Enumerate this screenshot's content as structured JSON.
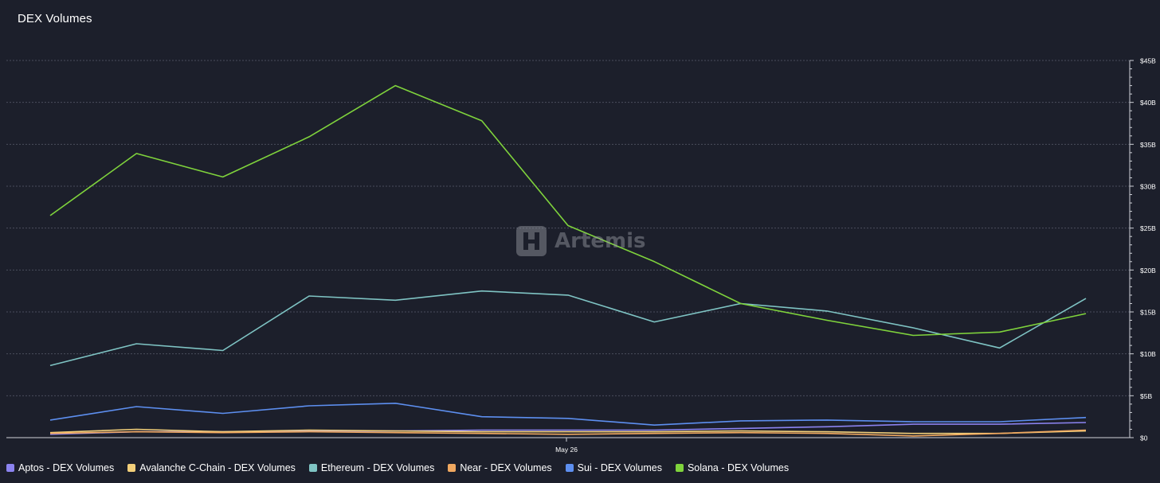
{
  "page": {
    "title": "DEX Volumes",
    "watermark": "Artemis"
  },
  "chart_data": {
    "type": "line",
    "title": "DEX Volumes",
    "xlabel": "",
    "ylabel": "",
    "x_tick_labels": [
      "May 26"
    ],
    "y_ticks": [
      "$0",
      "$5B",
      "$10B",
      "$15B",
      "$20B",
      "$25B",
      "$30B",
      "$35B",
      "$40B",
      "$45B"
    ],
    "ylim": [
      0,
      45
    ],
    "y_unit": "billions USD",
    "grid": true,
    "legend_position": "bottom",
    "series": [
      {
        "name": "Aptos - DEX Volumes",
        "color": "#8b83f0",
        "values": [
          0.4,
          0.7,
          0.7,
          0.8,
          0.8,
          0.9,
          0.9,
          0.9,
          1.1,
          1.3,
          1.6,
          1.6,
          1.8
        ]
      },
      {
        "name": "Avalanche C-Chain - DEX Volumes",
        "color": "#f2cf7a",
        "values": [
          0.6,
          1.0,
          0.7,
          0.9,
          0.8,
          0.7,
          0.7,
          0.7,
          0.8,
          0.7,
          0.5,
          0.5,
          0.8
        ]
      },
      {
        "name": "Ethereum - DEX Volumes",
        "color": "#7fc4c4",
        "values": [
          8.6,
          11.2,
          10.4,
          16.9,
          16.4,
          17.5,
          17.0,
          13.8,
          16.0,
          15.1,
          13.1,
          10.7,
          16.6
        ]
      },
      {
        "name": "Near - DEX Volumes",
        "color": "#f0a860",
        "values": [
          0.5,
          0.7,
          0.6,
          0.7,
          0.6,
          0.5,
          0.4,
          0.5,
          0.6,
          0.5,
          0.2,
          0.5,
          0.9
        ]
      },
      {
        "name": "Sui - DEX Volumes",
        "color": "#5d8ff0",
        "values": [
          2.1,
          3.7,
          2.9,
          3.8,
          4.1,
          2.5,
          2.3,
          1.5,
          2.0,
          2.1,
          1.9,
          1.9,
          2.4
        ]
      },
      {
        "name": "Solana - DEX Volumes",
        "color": "#7fd33c",
        "values": [
          26.5,
          33.9,
          31.1,
          35.9,
          42.0,
          37.8,
          25.3,
          21.0,
          16.0,
          14.0,
          12.2,
          12.6,
          14.8
        ]
      }
    ]
  }
}
